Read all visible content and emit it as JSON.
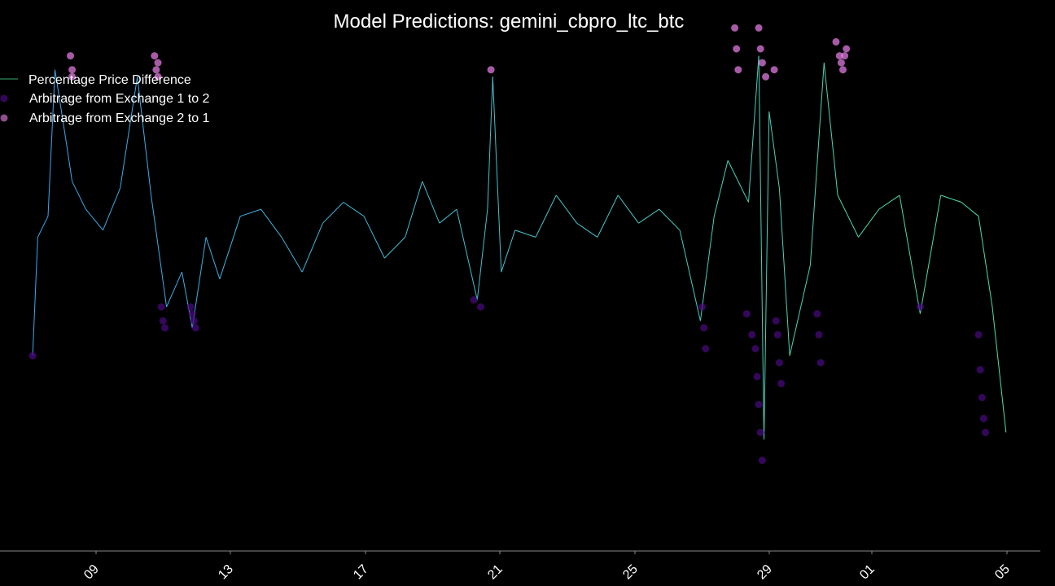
{
  "chart_data": {
    "type": "line",
    "title": "Model Predictions: gemini_cbpro_ltc_btc",
    "xlabel": "",
    "ylabel": "",
    "x_tick_labels": [
      "09",
      "13",
      "17",
      "21",
      "25",
      "29",
      "01",
      "05"
    ],
    "x_range_days": [
      6.0,
      36.3
    ],
    "y_range": [
      -4.5,
      3.4
    ],
    "grid": false,
    "legend_position": "top-left",
    "series": [
      {
        "name": "Percentage Price Difference",
        "kind": "line",
        "color_start": "#3ba6f0",
        "color_end": "#4ee0a6",
        "x": [
          6.95,
          7.1,
          7.4,
          7.6,
          7.95,
          8.1,
          8.5,
          9.0,
          9.5,
          10.0,
          10.4,
          10.85,
          11.3,
          11.6,
          12.0,
          12.4,
          13.0,
          13.6,
          14.2,
          14.8,
          15.4,
          16.0,
          16.6,
          17.2,
          17.8,
          18.3,
          18.8,
          19.3,
          19.9,
          20.2,
          20.35,
          20.6,
          21.0,
          21.6,
          22.2,
          22.8,
          23.4,
          24.0,
          24.6,
          25.2,
          25.8,
          26.4,
          26.8,
          27.2,
          27.8,
          28.1,
          28.25,
          28.4,
          28.7,
          29.0,
          29.6,
          30.0,
          30.4,
          31.0,
          31.6,
          32.2,
          32.8,
          33.4,
          34.0,
          34.5,
          34.9,
          35.3
        ],
        "y": [
          -1.7,
          0.0,
          0.3,
          2.4,
          1.3,
          0.8,
          0.4,
          0.1,
          0.7,
          2.3,
          0.6,
          -1.0,
          -0.5,
          -1.3,
          0.0,
          -0.6,
          0.3,
          0.4,
          0.0,
          -0.5,
          0.2,
          0.5,
          0.3,
          -0.3,
          0.0,
          0.8,
          0.2,
          0.4,
          -0.9,
          0.4,
          2.3,
          -0.5,
          0.1,
          0.0,
          0.6,
          0.2,
          0.0,
          0.6,
          0.2,
          0.4,
          0.1,
          -1.2,
          0.3,
          1.1,
          0.5,
          2.6,
          -2.9,
          1.8,
          0.7,
          -1.7,
          -0.4,
          2.5,
          0.6,
          0.0,
          0.4,
          0.6,
          -1.1,
          0.6,
          0.5,
          0.3,
          -1.0,
          -2.8
        ]
      },
      {
        "name": "Arbitrage from Exchange 1 to 2",
        "kind": "scatter",
        "color": "#4b0a82",
        "x": [
          6.95,
          10.7,
          10.75,
          10.8,
          11.55,
          11.6,
          11.65,
          11.7,
          19.8,
          20.0,
          26.45,
          26.5,
          26.55,
          27.75,
          27.9,
          28.0,
          28.05,
          28.1,
          28.15,
          28.2,
          28.6,
          28.65,
          28.7,
          28.75,
          29.8,
          29.85,
          29.9,
          32.8,
          34.5,
          34.55,
          34.6,
          34.65,
          34.7
        ],
        "y": [
          -1.7,
          -1.0,
          -1.2,
          -1.3,
          -1.0,
          -1.1,
          -1.2,
          -1.3,
          -0.9,
          -1.0,
          -1.0,
          -1.3,
          -1.6,
          -1.1,
          -1.4,
          -1.6,
          -2.0,
          -2.4,
          -2.8,
          -3.2,
          -1.2,
          -1.4,
          -1.8,
          -2.1,
          -1.1,
          -1.4,
          -1.8,
          -1.0,
          -1.4,
          -1.9,
          -2.3,
          -2.6,
          -2.8
        ]
      },
      {
        "name": "Arbitrage from Exchange 2 to 1",
        "kind": "scatter",
        "color": "#ee82ee",
        "x": [
          8.05,
          8.1,
          8.1,
          10.5,
          10.55,
          10.6,
          10.6,
          20.3,
          27.4,
          27.45,
          27.5,
          28.1,
          28.15,
          28.2,
          28.3,
          28.55,
          30.35,
          30.45,
          30.5,
          30.55,
          30.6,
          30.65
        ],
        "y": [
          2.6,
          2.3,
          2.4,
          2.6,
          2.4,
          2.3,
          2.5,
          2.4,
          3.0,
          2.7,
          2.4,
          3.0,
          2.7,
          2.5,
          2.3,
          2.4,
          2.8,
          2.6,
          2.5,
          2.4,
          2.6,
          2.7
        ]
      }
    ]
  },
  "legend": {
    "line_label": "Percentage Price Difference",
    "ex12_label": "Arbitrage from Exchange 1 to 2",
    "ex21_label": "Arbitrage from Exchange 2 to 1"
  },
  "colors": {
    "background": "#000000",
    "axis": "#888888",
    "text": "#ffffff"
  }
}
